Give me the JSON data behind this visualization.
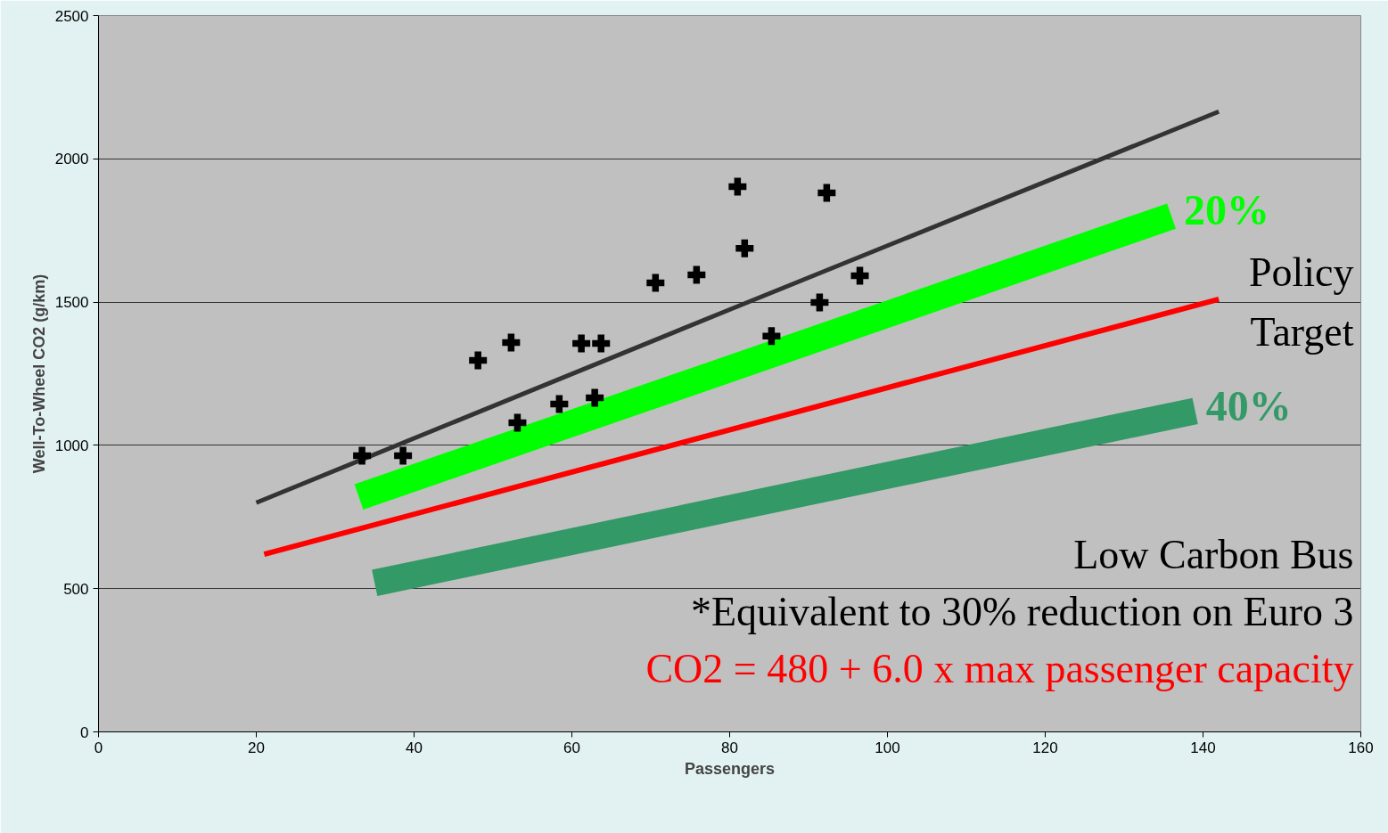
{
  "chart_data": {
    "type": "scatter",
    "xlabel": "Passengers",
    "ylabel": "Well-To-Wheel CO2 (g/km)",
    "xlim": [
      0,
      160
    ],
    "ylim": [
      0,
      2500
    ],
    "xticks": [
      0,
      20,
      40,
      60,
      80,
      100,
      120,
      140,
      160
    ],
    "yticks": [
      0,
      500,
      1000,
      1500,
      2000,
      2500
    ],
    "grid": "y",
    "series": [
      {
        "type": "line",
        "color": "#333333",
        "marker": "none",
        "x": [
          20,
          80,
          142
        ],
        "values": [
          800,
          1474,
          2165
        ]
      },
      {
        "type": "line",
        "color": "#00ff00",
        "marker": "none",
        "x": [
          33,
          136
        ],
        "values": [
          820,
          1800
        ]
      },
      {
        "type": "line",
        "color": "#ff0000",
        "marker": "none",
        "x": [
          21,
          142
        ],
        "values": [
          620,
          1510
        ]
      },
      {
        "type": "line",
        "color": "#339966",
        "marker": "none",
        "x": [
          35,
          139
        ],
        "values": [
          520,
          1120
        ]
      },
      {
        "color": "#000000",
        "marker": "cross",
        "x": [
          33.4,
          38.6,
          48.1,
          52.3,
          53.1,
          58.4,
          61.2,
          63.7,
          62.9,
          70.6,
          75.8,
          81.9,
          81.0,
          92.3,
          85.3,
          91.4,
          96.5
        ],
        "values": [
          964,
          964,
          1297,
          1359,
          1079,
          1144,
          1356,
          1356,
          1166,
          1567,
          1595,
          1688,
          1903,
          1881,
          1381,
          1499,
          1592
        ]
      }
    ],
    "annotations": [
      "20%",
      "40%",
      "Policy Target",
      "Low Carbon Bus",
      "*Equivalent to 30% reduction on Euro 3",
      "CO2 = 480 + 6.0 x max passenger capacity"
    ]
  }
}
